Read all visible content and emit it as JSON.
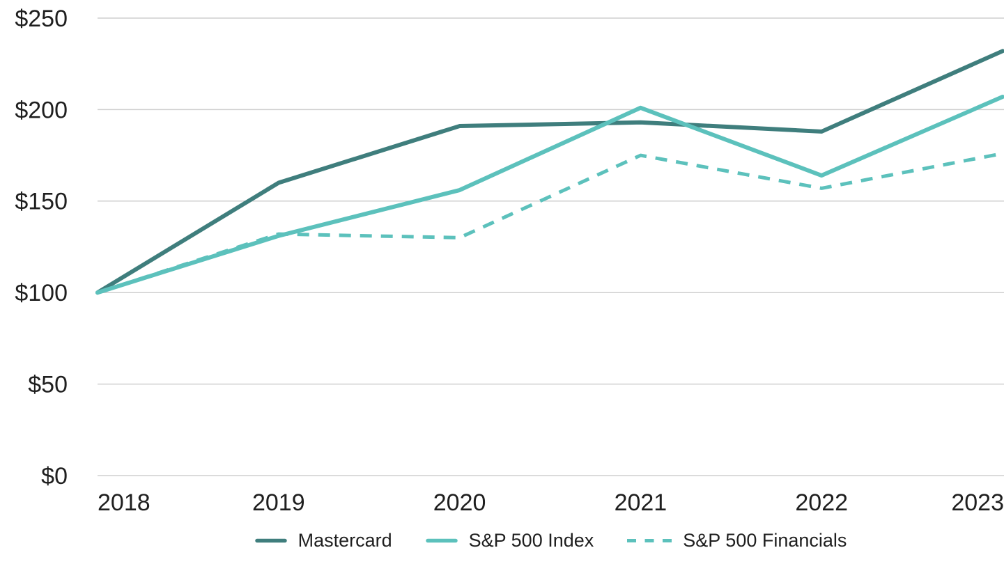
{
  "chart_data": {
    "type": "line",
    "x": [
      "2018",
      "2019",
      "2020",
      "2021",
      "2022",
      "2023"
    ],
    "series": [
      {
        "name": "Mastercard",
        "color": "#3F7E7D",
        "dash": false,
        "values": [
          100,
          160,
          191,
          193,
          188,
          232
        ]
      },
      {
        "name": "S&P 500 Index",
        "color": "#5CC1BC",
        "dash": false,
        "values": [
          100,
          131,
          156,
          201,
          164,
          207
        ]
      },
      {
        "name": "S&P 500 Financials",
        "color": "#5CC1BC",
        "dash": true,
        "values": [
          100,
          132,
          130,
          175,
          157,
          176
        ]
      }
    ],
    "yticks": [
      {
        "value": 0,
        "label": "$0"
      },
      {
        "value": 50,
        "label": "$50"
      },
      {
        "value": 100,
        "label": "$100"
      },
      {
        "value": 150,
        "label": "$150"
      },
      {
        "value": 200,
        "label": "$200"
      },
      {
        "value": 250,
        "label": "$250"
      }
    ],
    "ylim": [
      0,
      250
    ],
    "grid": "horizontal",
    "legend_position": "bottom",
    "colors": {
      "axis_text": "#1F1F1F",
      "gridline": "#CFCFCF",
      "background": "#FFFFFF"
    }
  }
}
